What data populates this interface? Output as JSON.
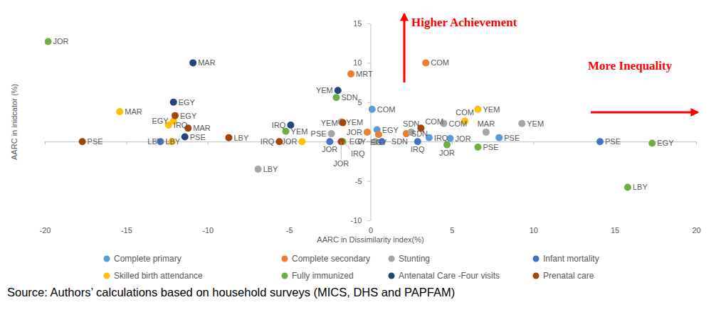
{
  "chart_data": {
    "type": "scatter",
    "x_label": "AARC in Dissimilarity index(%)",
    "y_label": "AARC in inidcator (%)",
    "annotations": [
      "Higher Achievement",
      "More Inequality"
    ],
    "source": "Source: Authors’ calculations based on household surveys (MICS, DHS and PAPFAM)",
    "xlim": [
      -20,
      20
    ],
    "ylim": [
      -10,
      15
    ],
    "xticks": [
      -20,
      -15,
      -10,
      -5,
      0,
      5,
      10,
      15,
      20
    ],
    "yticks": [
      -10,
      -5,
      0,
      5,
      10,
      15
    ],
    "grid": false,
    "legend": "bottom",
    "marker": "circle",
    "series": [
      {
        "name": "Complete primary",
        "color": "#5b9bd5",
        "x": [
          0.1,
          0.4,
          3.6,
          4.9,
          7.9
        ],
        "values": [
          4.1,
          1.5,
          0.5,
          0.4,
          0.5
        ],
        "labels": [
          "COM",
          "EGY",
          "IRQ",
          "JOR",
          "PSE"
        ]
      },
      {
        "name": "Complete secondary",
        "color": "#ed7d31",
        "x": [
          -1.2,
          3.4,
          -0.2,
          0.5,
          2.2
        ],
        "values": [
          8.6,
          10.0,
          1.2,
          0.9,
          1.0
        ],
        "labels": [
          "MRT",
          "COM",
          "JOR",
          "EGY",
          "SDN"
        ]
      },
      {
        "name": "Stunting",
        "color": "#a5a5a5",
        "x": [
          -6.9,
          -2.4,
          -1.8,
          0.3,
          2.5,
          4.5,
          7.1,
          9.3
        ],
        "values": [
          -3.5,
          1.0,
          2.5,
          0.0,
          1.2,
          2.3,
          1.2,
          2.3
        ],
        "labels": [
          "LBY",
          "PSE",
          "YEM",
          "EGY",
          "SDN",
          "COM",
          "MAR",
          "YEM"
        ]
      },
      {
        "name": "Infant mortality",
        "color": "#4472c4",
        "x": [
          -12.9,
          -2.5,
          0.7,
          2.9,
          14.1
        ],
        "values": [
          0.0,
          0.0,
          0.0,
          0.0,
          0.0
        ],
        "labels": [
          "LBY",
          "JOR",
          "SDN",
          "IRQ",
          "PSE"
        ]
      },
      {
        "name": "Skilled birth attendance",
        "color": "#ffc000",
        "x": [
          -15.4,
          -12.4,
          -12.1,
          -12.2,
          -4.2,
          5.8,
          6.6
        ],
        "values": [
          3.8,
          2.1,
          2.6,
          0.0,
          0.0,
          2.6,
          4.1
        ],
        "labels": [
          "MAR",
          "IRQ",
          "EGY",
          "LBY",
          "JOR",
          "COM",
          "YEM"
        ]
      },
      {
        "name": "Fully immunized",
        "color": "#70ad47",
        "x": [
          -19.8,
          -2.1,
          -5.2,
          -1.7,
          4.7,
          6.6,
          15.8,
          17.3
        ],
        "values": [
          12.7,
          5.6,
          1.3,
          0.0,
          -0.4,
          -0.7,
          -5.8,
          -0.2
        ],
        "labels": [
          "JOR",
          "SDN",
          "YEM",
          "IRQ",
          "JOR",
          "PSE",
          "LBY",
          "EGY"
        ]
      },
      {
        "name": "Antenatal Care -Four visits",
        "color": "#264478",
        "x": [
          -10.9,
          -2.0,
          -12.1,
          -4.9,
          -11.4
        ],
        "values": [
          10.0,
          6.5,
          5.0,
          2.1,
          0.6
        ],
        "labels": [
          "MAR",
          "YEM",
          "EGY",
          "IRQ",
          "PSE"
        ]
      },
      {
        "name": "Prenatal care",
        "color": "#9e480e",
        "x": [
          -17.7,
          -12.0,
          -11.2,
          -8.7,
          -5.6,
          -1.8,
          -1.7,
          3.1
        ],
        "values": [
          0.0,
          3.3,
          1.7,
          0.5,
          0.0,
          0.0,
          2.4,
          1.7
        ],
        "labels": [
          "PSE",
          "EGY",
          "MAR",
          "LBY",
          "IRQ",
          "JOR",
          "YEM",
          "COM"
        ]
      }
    ]
  }
}
